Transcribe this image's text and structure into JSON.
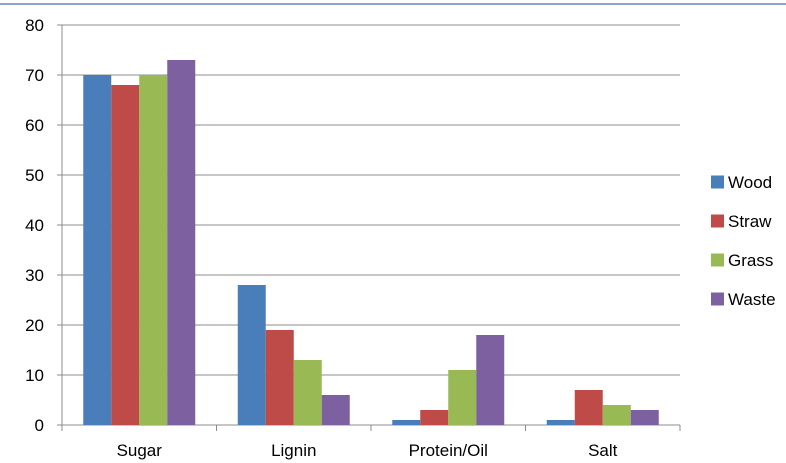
{
  "chart_data": {
    "type": "bar",
    "categories": [
      "Sugar",
      "Lignin",
      "Protein/Oil",
      "Salt"
    ],
    "series": [
      {
        "name": "Wood",
        "color": "#4a7ebb",
        "values": [
          70,
          28,
          1,
          1
        ]
      },
      {
        "name": "Straw",
        "color": "#be4b48",
        "values": [
          68,
          19,
          3,
          7
        ]
      },
      {
        "name": "Grass",
        "color": "#98b954",
        "values": [
          70,
          13,
          11,
          4
        ]
      },
      {
        "name": "Waste",
        "color": "#7d60a0",
        "values": [
          73,
          6,
          18,
          3
        ]
      }
    ],
    "title": "",
    "xlabel": "",
    "ylabel": "",
    "ylim": [
      0,
      80
    ],
    "yticks": [
      0,
      10,
      20,
      30,
      40,
      50,
      60,
      70,
      80
    ],
    "grid": true,
    "legend_position": "right"
  }
}
